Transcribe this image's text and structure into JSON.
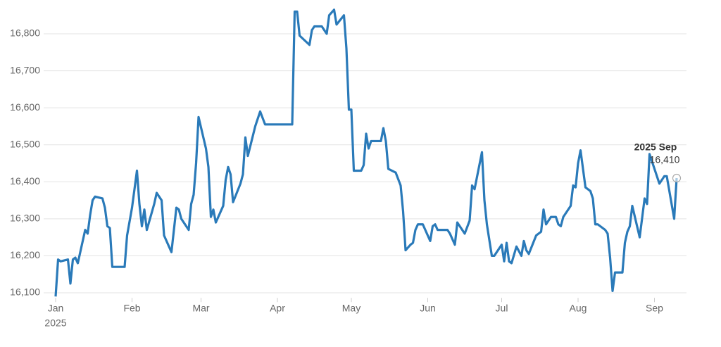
{
  "chart_data": {
    "type": "line",
    "x": [
      0,
      1,
      2,
      5,
      6,
      7,
      8,
      9,
      12,
      13,
      14,
      15,
      16,
      19,
      20,
      21,
      22,
      23,
      28,
      29,
      31,
      33,
      34,
      35,
      36,
      37,
      40,
      41,
      43,
      44,
      47,
      49,
      50,
      51,
      54,
      55,
      56,
      57,
      58,
      61,
      62,
      63,
      64,
      65,
      68,
      69,
      70,
      71,
      72,
      75,
      76,
      77,
      78,
      81,
      83,
      85,
      96,
      97,
      98,
      99,
      103,
      104,
      105,
      108,
      110,
      111,
      113,
      114,
      117,
      118,
      119,
      120,
      121,
      124,
      125,
      126,
      127,
      128,
      132,
      133,
      134,
      135,
      138,
      140,
      141,
      142,
      144,
      145,
      146,
      147,
      149,
      152,
      153,
      154,
      155,
      159,
      160,
      162,
      163,
      166,
      168,
      169,
      170,
      173,
      174,
      175,
      177,
      178,
      181,
      182,
      183,
      184,
      185,
      187,
      189,
      190,
      191,
      192,
      195,
      197,
      198,
      199,
      201,
      203,
      204,
      205,
      206,
      209,
      210,
      211,
      212,
      213,
      215,
      217,
      218,
      219,
      220,
      223,
      224,
      225,
      226,
      227,
      230,
      231,
      232,
      233,
      234,
      237,
      239,
      240,
      241,
      244,
      245,
      247,
      248,
      251,
      252
    ],
    "series": [
      {
        "color": "#2a7ab9",
        "values": [
          16090,
          16190,
          16185,
          16190,
          16125,
          16190,
          16195,
          16180,
          16270,
          16260,
          16310,
          16350,
          16360,
          16355,
          16330,
          16280,
          16275,
          16170,
          16170,
          16255,
          16330,
          16430,
          16340,
          16280,
          16325,
          16270,
          16340,
          16370,
          16350,
          16255,
          16210,
          16330,
          16325,
          16300,
          16270,
          16340,
          16365,
          16450,
          16575,
          16490,
          16440,
          16305,
          16325,
          16290,
          16335,
          16405,
          16440,
          16420,
          16345,
          16395,
          16420,
          16520,
          16470,
          16550,
          16590,
          16555,
          16555,
          16860,
          16860,
          16795,
          16770,
          16810,
          16820,
          16820,
          16800,
          16850,
          16865,
          16825,
          16850,
          16760,
          16595,
          16595,
          16430,
          16430,
          16445,
          16530,
          16490,
          16510,
          16510,
          16545,
          16510,
          16435,
          16425,
          16390,
          16320,
          16215,
          16230,
          16235,
          16270,
          16285,
          16285,
          16240,
          16280,
          16285,
          16270,
          16270,
          16260,
          16230,
          16290,
          16260,
          16295,
          16390,
          16380,
          16480,
          16350,
          16285,
          16200,
          16200,
          16230,
          16185,
          16235,
          16185,
          16180,
          16225,
          16200,
          16240,
          16215,
          16205,
          16255,
          16265,
          16325,
          16285,
          16305,
          16305,
          16285,
          16280,
          16305,
          16335,
          16390,
          16385,
          16450,
          16485,
          16385,
          16375,
          16355,
          16285,
          16285,
          16270,
          16260,
          16195,
          16105,
          16155,
          16155,
          16235,
          16265,
          16280,
          16335,
          16250,
          16355,
          16340,
          16475,
          16415,
          16395,
          16415,
          16415,
          16300,
          16410
        ]
      }
    ],
    "xlim": [
      0,
      256
    ],
    "xticks": [
      {
        "value": 0,
        "label": "Jan"
      },
      {
        "value": 31,
        "label": "Feb"
      },
      {
        "value": 59,
        "label": "Mar"
      },
      {
        "value": 90,
        "label": "Apr"
      },
      {
        "value": 120,
        "label": "May"
      },
      {
        "value": 151,
        "label": "Jun"
      },
      {
        "value": 181,
        "label": "Jul"
      },
      {
        "value": 212,
        "label": "Aug"
      },
      {
        "value": 243,
        "label": "Sep"
      }
    ],
    "xtick_year": "2025",
    "ylim": [
      16090,
      16880
    ],
    "yticks": [
      {
        "value": 16100,
        "label": "16,100"
      },
      {
        "value": 16200,
        "label": "16,200"
      },
      {
        "value": 16300,
        "label": "16,300"
      },
      {
        "value": 16400,
        "label": "16,400"
      },
      {
        "value": 16500,
        "label": "16,500"
      },
      {
        "value": 16600,
        "label": "16,600"
      },
      {
        "value": 16700,
        "label": "16,700"
      },
      {
        "value": 16800,
        "label": "16,800"
      }
    ],
    "grid": true,
    "annotation": {
      "label": "2025 Sep",
      "value": 16410,
      "value_label": "16,410"
    }
  }
}
